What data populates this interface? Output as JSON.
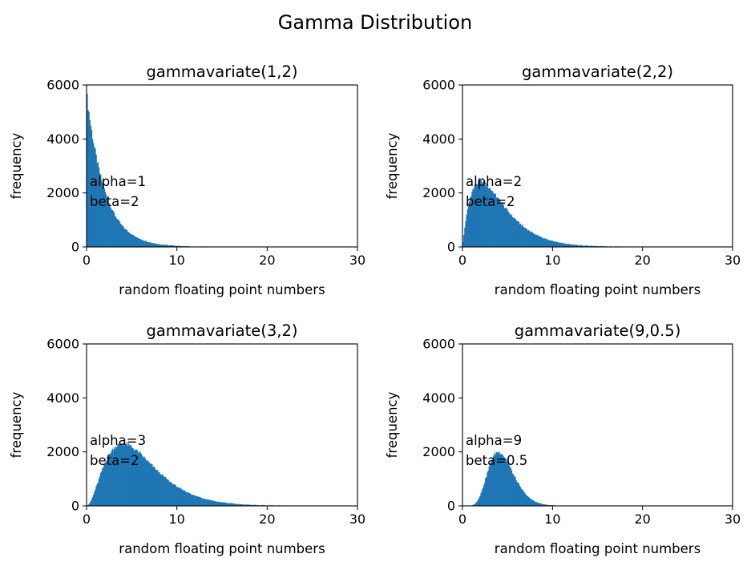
{
  "figure": {
    "suptitle": "Gamma Distribution"
  },
  "chart_data": [
    {
      "type": "bar",
      "title": "gammavariate(1,2)",
      "xlabel": "random floating point numbers",
      "ylabel": "frequency",
      "xlim": [
        0,
        30
      ],
      "ylim": [
        0,
        6000
      ],
      "xticks": [
        "0",
        "10",
        "20",
        "30"
      ],
      "yticks": [
        "0",
        "2000",
        "4000",
        "6000"
      ],
      "annotation": [
        "alpha=1",
        "beta=2"
      ],
      "alpha": 1,
      "beta": 2,
      "color": "#1f77b4",
      "bin_width": 0.1,
      "hist": {
        "x_start": 0,
        "peak_x": 0.0,
        "peak_y": 5650,
        "approx_max_x": 14
      }
    },
    {
      "type": "bar",
      "title": "gammavariate(2,2)",
      "xlabel": "random floating point numbers",
      "ylabel": "frequency",
      "xlim": [
        0,
        30
      ],
      "ylim": [
        0,
        6000
      ],
      "xticks": [
        "0",
        "10",
        "20",
        "30"
      ],
      "yticks": [
        "0",
        "2000",
        "4000",
        "6000"
      ],
      "annotation": [
        "alpha=2",
        "beta=2"
      ],
      "alpha": 2,
      "beta": 2,
      "color": "#1f77b4",
      "bin_width": 0.1,
      "hist": {
        "x_start": 0,
        "peak_x": 2.0,
        "peak_y": 2400,
        "approx_max_x": 22
      }
    },
    {
      "type": "bar",
      "title": "gammavariate(3,2)",
      "xlabel": "random floating point numbers",
      "ylabel": "frequency",
      "xlim": [
        0,
        30
      ],
      "ylim": [
        0,
        6000
      ],
      "xticks": [
        "0",
        "10",
        "20",
        "30"
      ],
      "yticks": [
        "0",
        "2000",
        "4000",
        "6000"
      ],
      "annotation": [
        "alpha=3",
        "beta=2"
      ],
      "alpha": 3,
      "beta": 2,
      "color": "#1f77b4",
      "bin_width": 0.1,
      "hist": {
        "x_start": 0,
        "peak_x": 4.0,
        "peak_y": 2300,
        "approx_max_x": 23
      }
    },
    {
      "type": "bar",
      "title": "gammavariate(9,0.5)",
      "xlabel": "random floating point numbers",
      "ylabel": "frequency",
      "xlim": [
        0,
        30
      ],
      "ylim": [
        0,
        6000
      ],
      "xticks": [
        "0",
        "10",
        "20",
        "30"
      ],
      "yticks": [
        "0",
        "2000",
        "4000",
        "6000"
      ],
      "annotation": [
        "alpha=9",
        "beta=0.5"
      ],
      "alpha": 9,
      "beta": 0.5,
      "color": "#1f77b4",
      "bin_width": 0.1,
      "hist": {
        "x_start": 0,
        "peak_x": 4.0,
        "peak_y": 2000,
        "approx_max_x": 10.5
      }
    }
  ]
}
